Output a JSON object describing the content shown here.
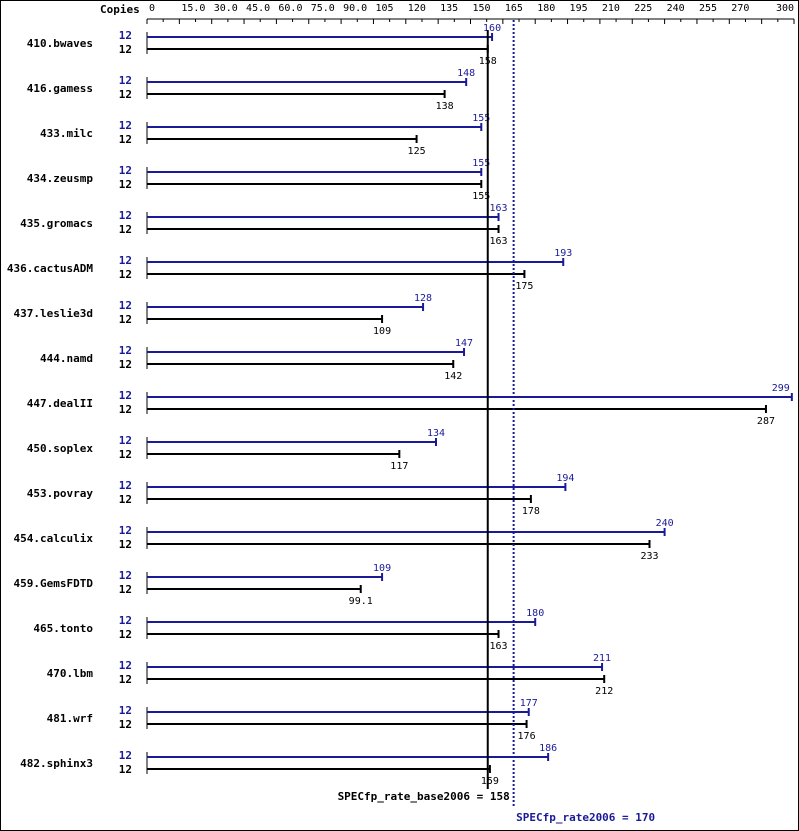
{
  "chart_data": {
    "type": "bar",
    "orientation": "horizontal",
    "copies_header": "Copies",
    "x_ticks": [
      "0",
      "15.0",
      "30.0",
      "45.0",
      "60.0",
      "75.0",
      "90.0",
      "105",
      "120",
      "135",
      "150",
      "165",
      "180",
      "195",
      "210",
      "225",
      "240",
      "255",
      "270",
      "300"
    ],
    "xlim": [
      0,
      300
    ],
    "categories": [
      "410.bwaves",
      "416.gamess",
      "433.milc",
      "434.zeusmp",
      "435.gromacs",
      "436.cactusADM",
      "437.leslie3d",
      "444.namd",
      "447.dealII",
      "450.soplex",
      "453.povray",
      "454.calculix",
      "459.GemsFDTD",
      "465.tonto",
      "470.lbm",
      "481.wrf",
      "482.sphinx3"
    ],
    "series": [
      {
        "role": "peak",
        "color": "#1a1a99",
        "copies": [
          "12",
          "12",
          "12",
          "12",
          "12",
          "12",
          "12",
          "12",
          "12",
          "12",
          "12",
          "12",
          "12",
          "12",
          "12",
          "12",
          "12"
        ],
        "values": [
          160,
          148,
          155,
          155,
          163,
          193,
          128,
          147,
          299,
          134,
          194,
          240,
          109,
          180,
          211,
          177,
          186
        ],
        "labels": [
          "160",
          "148",
          "155",
          "155",
          "163",
          "193",
          "128",
          "147",
          "299",
          "134",
          "194",
          "240",
          "109",
          "180",
          "211",
          "177",
          "186"
        ]
      },
      {
        "role": "base",
        "color": "#000000",
        "copies": [
          "12",
          "12",
          "12",
          "12",
          "12",
          "12",
          "12",
          "12",
          "12",
          "12",
          "12",
          "12",
          "12",
          "12",
          "12",
          "12",
          "12"
        ],
        "values": [
          158,
          138,
          125,
          155,
          163,
          175,
          109,
          142,
          287,
          117,
          178,
          233,
          99.1,
          163,
          212,
          176,
          159
        ],
        "labels": [
          "158",
          "138",
          "125",
          "155",
          "163",
          "175",
          "109",
          "142",
          "287",
          "117",
          "178",
          "233",
          "99.1",
          "163",
          "212",
          "176",
          "159"
        ]
      }
    ],
    "reference_lines": [
      {
        "role": "base",
        "value": 158,
        "style": "solid",
        "color": "#000000",
        "label": "SPECfp_rate_base2006 = 158"
      },
      {
        "role": "peak",
        "value": 170,
        "style": "dotted",
        "color": "#1a1a99",
        "label": "SPECfp_rate2006 = 170"
      }
    ],
    "grid": false,
    "legend": "none"
  }
}
